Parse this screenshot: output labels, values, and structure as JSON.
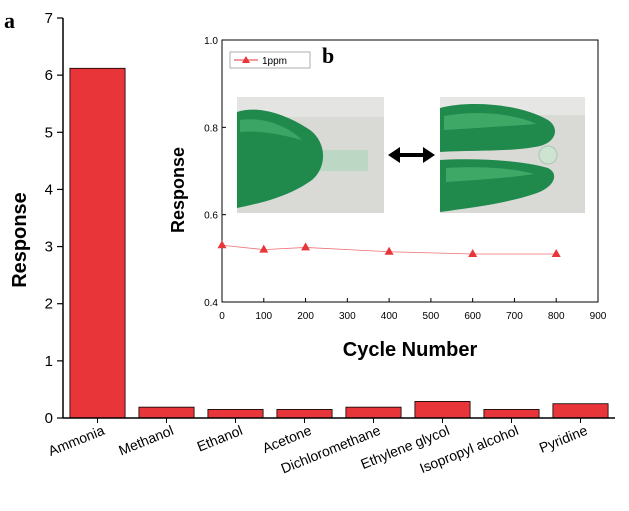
{
  "chart_data": [
    {
      "type": "bar",
      "panel_label": "a",
      "ylabel": "Response",
      "ylim": [
        0,
        7
      ],
      "yticks": [
        "0",
        "1",
        "2",
        "3",
        "4",
        "5",
        "6",
        "7"
      ],
      "categories": [
        "Ammonia",
        "Methanol",
        "Ethanol",
        "Acetone",
        "Dichloromethane",
        "Ethylene glycol",
        "Isopropyl alcohol",
        "Pyridine"
      ],
      "values": [
        6.12,
        0.19,
        0.15,
        0.15,
        0.19,
        0.29,
        0.15,
        0.25
      ],
      "bar_color": "#e8353a"
    },
    {
      "type": "line",
      "panel_label": "b",
      "xlabel": "Cycle Number",
      "ylabel": "Response",
      "xlim": [
        0,
        900
      ],
      "ylim": [
        0.4,
        1.0
      ],
      "xticks": [
        "0",
        "100",
        "200",
        "300",
        "400",
        "500",
        "600",
        "700",
        "800",
        "900"
      ],
      "yticks": [
        "0.4",
        "0.6",
        "0.8",
        "1.0"
      ],
      "series": [
        {
          "name": "1ppm",
          "x": [
            0,
            100,
            200,
            400,
            600,
            800
          ],
          "y": [
            0.53,
            0.52,
            0.525,
            0.515,
            0.51,
            0.51
          ],
          "color": "#e8353a",
          "marker": "triangle"
        }
      ],
      "legend_position": "top-left"
    }
  ]
}
